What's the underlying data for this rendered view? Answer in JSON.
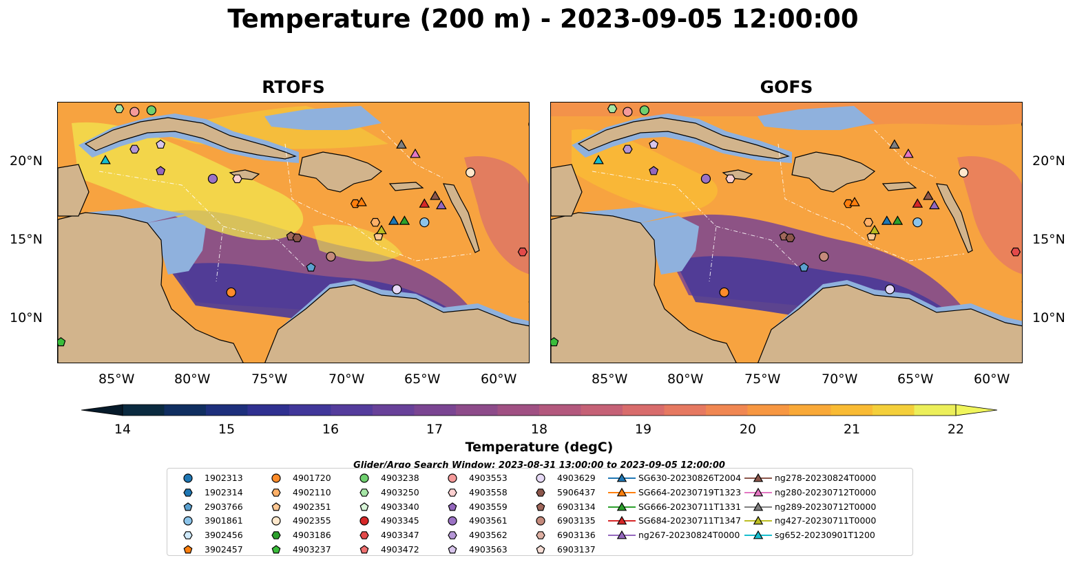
{
  "figure": {
    "title": "Temperature (200 m) - 2023-09-05 12:00:00",
    "panels": [
      {
        "title": "RTOFS"
      },
      {
        "title": "GOFS"
      }
    ],
    "lat_labels": [
      "20°N",
      "15°N",
      "10°N"
    ],
    "lon_labels": [
      "85°W",
      "80°W",
      "75°W",
      "70°W",
      "65°W",
      "60°W"
    ],
    "colorbar": {
      "label": "Temperature (degC)",
      "ticks": [
        "14",
        "15",
        "16",
        "17",
        "18",
        "19",
        "20",
        "21",
        "22"
      ],
      "colors": [
        "#0a2a40",
        "#102e60",
        "#1d2f7c",
        "#2f3090",
        "#41379a",
        "#543c9c",
        "#684199",
        "#7a4592",
        "#8d4b8a",
        "#a05083",
        "#b3587d",
        "#c56176",
        "#d86c6c",
        "#e67961",
        "#f08752",
        "#f79742",
        "#f9a938",
        "#f9bb34",
        "#f4cf3b",
        "#ecef5a"
      ],
      "window_text": "Glider/Argo Search Window: 2023-08-31 13:00:00 to 2023-09-05 12:00:00"
    },
    "map_colors": {
      "land": "#d2b48c",
      "shelf": "#8fb1dd",
      "deep_left": "#062033",
      "warm": "#f7a340",
      "hot": "#f2e64e",
      "cool": "#4a3a98"
    },
    "legend": {
      "entries": [
        {
          "label": "1902313",
          "marker": "circle",
          "color": "#1f77b4"
        },
        {
          "label": "1902314",
          "marker": "hexagon",
          "color": "#1f77b4"
        },
        {
          "label": "2903766",
          "marker": "pentagon",
          "color": "#5ba1d0"
        },
        {
          "label": "3901861",
          "marker": "circle",
          "color": "#8cc4ea"
        },
        {
          "label": "3902456",
          "marker": "hexagon",
          "color": "#cfeafb"
        },
        {
          "label": "3902457",
          "marker": "pentagon",
          "color": "#ff7f0e"
        },
        {
          "label": "4901720",
          "marker": "circle",
          "color": "#ff8c2a"
        },
        {
          "label": "4902110",
          "marker": "hexagon",
          "color": "#ffb067"
        },
        {
          "label": "4902351",
          "marker": "pentagon",
          "color": "#ffc894"
        },
        {
          "label": "4902355",
          "marker": "circle",
          "color": "#ffe8cc"
        },
        {
          "label": "4903186",
          "marker": "hexagon",
          "color": "#2ca02c"
        },
        {
          "label": "4903237",
          "marker": "pentagon",
          "color": "#3bbd3b"
        },
        {
          "label": "4903238",
          "marker": "circle",
          "color": "#6fd06f"
        },
        {
          "label": "4903250",
          "marker": "hexagon",
          "color": "#a6e6a6"
        },
        {
          "label": "4903340",
          "marker": "pentagon",
          "color": "#d9f5d9"
        },
        {
          "label": "4903345",
          "marker": "circle",
          "color": "#d62728"
        },
        {
          "label": "4903347",
          "marker": "hexagon",
          "color": "#e34a4a"
        },
        {
          "label": "4903472",
          "marker": "pentagon",
          "color": "#f07070"
        },
        {
          "label": "4903553",
          "marker": "circle",
          "color": "#f59a9a"
        },
        {
          "label": "4903558",
          "marker": "hexagon",
          "color": "#fcd0d0"
        },
        {
          "label": "4903559",
          "marker": "pentagon",
          "color": "#9467bd"
        },
        {
          "label": "4903561",
          "marker": "circle",
          "color": "#9b72c4"
        },
        {
          "label": "4903562",
          "marker": "hexagon",
          "color": "#b596d6"
        },
        {
          "label": "4903563",
          "marker": "pentagon",
          "color": "#d8c5ec"
        },
        {
          "label": "4903629",
          "marker": "circle",
          "color": "#e6d9f5"
        },
        {
          "label": "5906437",
          "marker": "hexagon",
          "color": "#8c564b"
        },
        {
          "label": "6903134",
          "marker": "pentagon",
          "color": "#a0675b"
        },
        {
          "label": "6903135",
          "marker": "circle",
          "color": "#c48a7c"
        },
        {
          "label": "6903136",
          "marker": "hexagon",
          "color": "#deb0a3"
        },
        {
          "label": "6903137",
          "marker": "pentagon",
          "color": "#f6ddd5"
        },
        {
          "label": "SG630-20230826T2004",
          "marker": "triangle",
          "color": "#1f77b4"
        },
        {
          "label": "SG664-20230719T1323",
          "marker": "triangle",
          "color": "#ff7f0e"
        },
        {
          "label": "SG666-20230711T1331",
          "marker": "triangle",
          "color": "#2ca02c"
        },
        {
          "label": "SG684-20230711T1347",
          "marker": "triangle",
          "color": "#d62728"
        },
        {
          "label": "ng267-20230824T0000",
          "marker": "triangle",
          "color": "#9467bd"
        },
        {
          "label": "ng278-20230824T0000",
          "marker": "triangle",
          "color": "#8c564b"
        },
        {
          "label": "ng280-20230712T0000",
          "marker": "triangle",
          "color": "#e377c2"
        },
        {
          "label": "ng289-20230712T0000",
          "marker": "triangle",
          "color": "#7f7f7f"
        },
        {
          "label": "ng427-20230711T0000",
          "marker": "triangle",
          "color": "#bcbd22"
        },
        {
          "label": "sg652-20230901T1200",
          "marker": "triangle",
          "color": "#17becf"
        }
      ]
    },
    "markers": [
      {
        "lon": -85.0,
        "lat": 23.4,
        "marker": "hexagon",
        "color": "#a6e6a6"
      },
      {
        "lon": -84.0,
        "lat": 23.2,
        "marker": "circle",
        "color": "#f59a9a"
      },
      {
        "lon": -82.9,
        "lat": 23.3,
        "marker": "circle",
        "color": "#6fd06f"
      },
      {
        "lon": -85.9,
        "lat": 20.1,
        "marker": "triangle",
        "color": "#17becf"
      },
      {
        "lon": -84.0,
        "lat": 20.8,
        "marker": "hexagon",
        "color": "#b596d6"
      },
      {
        "lon": -82.3,
        "lat": 21.1,
        "marker": "pentagon",
        "color": "#d8c5ec"
      },
      {
        "lon": -82.3,
        "lat": 19.4,
        "marker": "pentagon",
        "color": "#9467bd"
      },
      {
        "lon": -78.9,
        "lat": 18.9,
        "marker": "circle",
        "color": "#9b72c4"
      },
      {
        "lon": -77.3,
        "lat": 18.9,
        "marker": "hexagon",
        "color": "#fcd0d0"
      },
      {
        "lon": -73.8,
        "lat": 15.2,
        "marker": "pentagon",
        "color": "#a0675b"
      },
      {
        "lon": -73.4,
        "lat": 15.1,
        "marker": "hexagon",
        "color": "#8c564b"
      },
      {
        "lon": -72.5,
        "lat": 13.2,
        "marker": "pentagon",
        "color": "#5ba1d0"
      },
      {
        "lon": -71.2,
        "lat": 13.9,
        "marker": "circle",
        "color": "#c48a7c"
      },
      {
        "lon": -77.7,
        "lat": 11.6,
        "marker": "circle",
        "color": "#ff8c2a"
      },
      {
        "lon": -69.6,
        "lat": 17.3,
        "marker": "hexagon",
        "color": "#ff7f0e"
      },
      {
        "lon": -69.2,
        "lat": 17.4,
        "marker": "triangle",
        "color": "#ff7f0e"
      },
      {
        "lon": -68.3,
        "lat": 16.1,
        "marker": "hexagon",
        "color": "#ffb067"
      },
      {
        "lon": -68.1,
        "lat": 15.2,
        "marker": "pentagon",
        "color": "#ffc894"
      },
      {
        "lon": -67.9,
        "lat": 15.6,
        "marker": "triangle",
        "color": "#bcbd22"
      },
      {
        "lon": -67.1,
        "lat": 16.2,
        "marker": "triangle",
        "color": "#1f77b4"
      },
      {
        "lon": -66.4,
        "lat": 16.2,
        "marker": "triangle",
        "color": "#2ca02c"
      },
      {
        "lon": -65.1,
        "lat": 16.1,
        "marker": "circle",
        "color": "#8cc4ea"
      },
      {
        "lon": -65.1,
        "lat": 17.3,
        "marker": "triangle",
        "color": "#d62728"
      },
      {
        "lon": -64.4,
        "lat": 17.8,
        "marker": "triangle",
        "color": "#8c564b"
      },
      {
        "lon": -64.0,
        "lat": 17.2,
        "marker": "triangle",
        "color": "#9467bd"
      },
      {
        "lon": -66.6,
        "lat": 21.1,
        "marker": "triangle",
        "color": "#7f7f7f"
      },
      {
        "lon": -65.7,
        "lat": 20.5,
        "marker": "triangle",
        "color": "#e377c2"
      },
      {
        "lon": -62.1,
        "lat": 19.3,
        "marker": "circle",
        "color": "#ffe8cc"
      },
      {
        "lon": -66.9,
        "lat": 11.8,
        "marker": "circle",
        "color": "#e6d9f5"
      },
      {
        "lon": -58.7,
        "lat": 14.2,
        "marker": "hexagon",
        "color": "#e34a4a"
      },
      {
        "lon": -58.0,
        "lat": 10.9,
        "marker": "pentagon",
        "color": "#d9f5d9"
      },
      {
        "lon": -58.0,
        "lat": 22.4,
        "marker": "circle",
        "color": "#1f77b4"
      },
      {
        "lon": -88.8,
        "lat": 8.4,
        "marker": "pentagon",
        "color": "#3bbd3b"
      }
    ]
  }
}
